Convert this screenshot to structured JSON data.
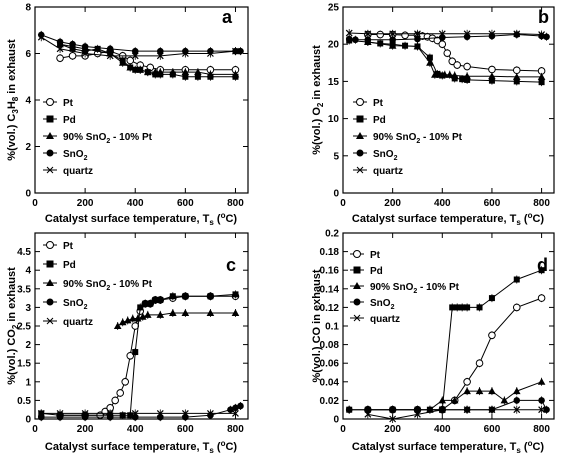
{
  "chart_data": [
    {
      "type": "line",
      "panel": "a",
      "xlabel": "Catalyst surface temperature, T_s (°C)",
      "ylabel": "%(vol.) C3H8 in exhaust",
      "xlim": [
        0,
        850
      ],
      "ylim": [
        0,
        8
      ],
      "xticks": [
        0,
        200,
        400,
        600,
        800
      ],
      "yticks": [
        0,
        2,
        4,
        6,
        8
      ],
      "legend": "bottom-left",
      "series": [
        {
          "name": "Pt",
          "marker": "circle-open",
          "x": [
            100,
            150,
            200,
            250,
            300,
            350,
            380,
            420,
            460,
            500,
            600,
            700,
            800
          ],
          "y": [
            5.8,
            5.9,
            5.9,
            6.0,
            6.1,
            5.9,
            5.7,
            5.5,
            5.4,
            5.3,
            5.3,
            5.3,
            5.3
          ]
        },
        {
          "name": "Pd",
          "marker": "square-filled",
          "x": [
            100,
            150,
            200,
            250,
            300,
            350,
            380,
            400,
            420,
            450,
            480,
            500,
            550,
            600,
            650,
            700,
            800
          ],
          "y": [
            6.4,
            6.2,
            6.1,
            6.2,
            6.0,
            5.7,
            5.4,
            5.3,
            5.3,
            5.2,
            5.1,
            5.1,
            5.1,
            5.0,
            5.0,
            5.0,
            5.0
          ]
        },
        {
          "name": "90% SnO2 - 10% Pt",
          "marker": "triangle-filled",
          "x": [
            100,
            200,
            300,
            350,
            380,
            420,
            450,
            480,
            500,
            550,
            600,
            650,
            700,
            800
          ],
          "y": [
            6.4,
            6.2,
            6.0,
            5.6,
            5.4,
            5.3,
            5.2,
            5.2,
            5.2,
            5.2,
            5.2,
            5.2,
            5.1,
            5.1
          ]
        },
        {
          "name": "SnO2",
          "marker": "circle-filled",
          "x": [
            25,
            100,
            150,
            200,
            300,
            400,
            500,
            600,
            700,
            800,
            820
          ],
          "y": [
            6.8,
            6.5,
            6.4,
            6.3,
            6.2,
            6.1,
            6.1,
            6.1,
            6.1,
            6.1,
            6.1
          ]
        },
        {
          "name": "quartz",
          "marker": "cross",
          "x": [
            25,
            100,
            200,
            300,
            400,
            500,
            600,
            700,
            800
          ],
          "y": [
            6.7,
            6.2,
            6.0,
            5.9,
            5.9,
            5.9,
            6.0,
            6.0,
            6.1
          ]
        }
      ]
    },
    {
      "type": "line",
      "panel": "b",
      "xlabel": "Catalyst surface temperature, T_s (°C)",
      "ylabel": "%(vol.) O2 in exhaust",
      "xlim": [
        0,
        850
      ],
      "ylim": [
        0,
        25
      ],
      "xticks": [
        0,
        200,
        400,
        600,
        800
      ],
      "yticks": [
        0,
        5,
        10,
        15,
        20,
        25
      ],
      "legend": "bottom-left",
      "series": [
        {
          "name": "Pt",
          "marker": "circle-open",
          "x": [
            100,
            150,
            200,
            250,
            300,
            320,
            340,
            360,
            380,
            400,
            420,
            440,
            460,
            500,
            600,
            700,
            800
          ],
          "y": [
            21.3,
            21.3,
            21.3,
            21.2,
            21.2,
            21.1,
            21.0,
            20.8,
            20.5,
            20.0,
            18.8,
            17.7,
            17.2,
            17.0,
            16.6,
            16.5,
            16.4
          ]
        },
        {
          "name": "Pd",
          "marker": "square-filled",
          "x": [
            25,
            100,
            150,
            200,
            250,
            300,
            350,
            380,
            400,
            450,
            480,
            500,
            600,
            700,
            800
          ],
          "y": [
            20.5,
            20.3,
            20.1,
            20.0,
            19.8,
            19.7,
            18.2,
            16.0,
            15.8,
            15.4,
            15.3,
            15.2,
            15.1,
            15.0,
            14.9
          ]
        },
        {
          "name": "90% SnO2 - 10% Pt",
          "marker": "triangle-filled",
          "x": [
            100,
            200,
            300,
            350,
            370,
            390,
            410,
            430,
            450,
            500,
            600,
            700,
            800
          ],
          "y": [
            20.3,
            19.8,
            19.7,
            17.5,
            15.9,
            15.9,
            15.9,
            15.9,
            15.8,
            15.7,
            15.7,
            15.6,
            15.6
          ]
        },
        {
          "name": "SnO2",
          "marker": "circle-filled",
          "x": [
            25,
            50,
            100,
            200,
            300,
            400,
            500,
            600,
            700,
            800,
            820
          ],
          "y": [
            20.7,
            20.6,
            20.6,
            20.6,
            20.7,
            20.9,
            21.0,
            21.1,
            21.3,
            21.1,
            21.0
          ]
        },
        {
          "name": "quartz",
          "marker": "cross",
          "x": [
            25,
            100,
            200,
            300,
            400,
            500,
            600,
            700,
            800
          ],
          "y": [
            21.5,
            21.4,
            21.4,
            21.4,
            21.4,
            21.4,
            21.4,
            21.4,
            21.3
          ]
        }
      ]
    },
    {
      "type": "line",
      "panel": "c",
      "xlabel": "Catalyst surface temperature, T_s (°C)",
      "ylabel": "%(vol.) CO2 in exhaust",
      "xlim": [
        0,
        850
      ],
      "ylim": [
        0,
        5
      ],
      "xticks": [
        0,
        200,
        400,
        600,
        800
      ],
      "yticks": [
        0,
        0.5,
        1,
        1.5,
        2,
        2.5,
        3,
        3.5,
        4,
        4.5
      ],
      "legend": "top-left",
      "series": [
        {
          "name": "Pt",
          "marker": "circle-open",
          "x": [
            100,
            200,
            260,
            280,
            300,
            320,
            340,
            360,
            380,
            400,
            420,
            440,
            460,
            480,
            500,
            550,
            600,
            700,
            800
          ],
          "y": [
            0.1,
            0.1,
            0.1,
            0.2,
            0.3,
            0.5,
            0.7,
            1.0,
            1.7,
            2.5,
            2.9,
            3.1,
            3.1,
            3.2,
            3.2,
            3.25,
            3.3,
            3.3,
            3.3
          ]
        },
        {
          "name": "Pd",
          "marker": "square-filled",
          "x": [
            25,
            100,
            200,
            300,
            350,
            380,
            400,
            420,
            440,
            460,
            480,
            500,
            550,
            600,
            700,
            800
          ],
          "y": [
            0.15,
            0.1,
            0.1,
            0.1,
            0.1,
            0.1,
            1.8,
            3.0,
            3.1,
            3.1,
            3.2,
            3.2,
            3.3,
            3.3,
            3.3,
            3.35
          ]
        },
        {
          "name": "90% SnO2 - 10% Pt",
          "marker": "triangle-filled",
          "x": [
            330,
            350,
            370,
            390,
            410,
            430,
            450,
            500,
            550,
            600,
            700,
            800
          ],
          "y": [
            2.5,
            2.6,
            2.65,
            2.7,
            2.7,
            2.75,
            2.8,
            2.8,
            2.85,
            2.85,
            2.85,
            2.85
          ]
        },
        {
          "name": "SnO2",
          "marker": "circle-filled",
          "x": [
            25,
            100,
            200,
            300,
            400,
            500,
            600,
            700,
            780,
            800,
            820
          ],
          "y": [
            0.05,
            0.05,
            0.05,
            0.05,
            0.05,
            0.05,
            0.05,
            0.1,
            0.25,
            0.3,
            0.35
          ]
        },
        {
          "name": "quartz",
          "marker": "cross",
          "x": [
            25,
            100,
            200,
            300,
            400,
            500,
            600,
            700,
            800
          ],
          "y": [
            0.15,
            0.15,
            0.15,
            0.15,
            0.15,
            0.15,
            0.15,
            0.15,
            0.15
          ]
        }
      ]
    },
    {
      "type": "line",
      "panel": "d",
      "xlabel": "Catalyst surface temperature, T_s (°C)",
      "ylabel": "%(vol.) CO in exhaust",
      "xlim": [
        0,
        850
      ],
      "ylim": [
        0,
        0.2
      ],
      "xticks": [
        0,
        200,
        400,
        600,
        800
      ],
      "yticks": [
        0,
        0.02,
        0.04,
        0.06,
        0.08,
        0.1,
        0.12,
        0.14,
        0.16,
        0.18,
        0.2
      ],
      "legend": "top-left",
      "series": [
        {
          "name": "Pt",
          "marker": "circle-open",
          "x": [
            100,
            200,
            300,
            400,
            450,
            500,
            550,
            600,
            700,
            800
          ],
          "y": [
            0.01,
            0.01,
            0.01,
            0.01,
            0.02,
            0.04,
            0.06,
            0.09,
            0.12,
            0.13
          ]
        },
        {
          "name": "Pd",
          "marker": "square-filled",
          "x": [
            25,
            100,
            200,
            300,
            350,
            400,
            440,
            460,
            480,
            500,
            550,
            600,
            700,
            800
          ],
          "y": [
            0.01,
            0.01,
            0.01,
            0.01,
            0.01,
            0.01,
            0.12,
            0.12,
            0.12,
            0.12,
            0.12,
            0.13,
            0.15,
            0.16
          ]
        },
        {
          "name": "90% SnO2 - 10% Pt",
          "marker": "triangle-filled",
          "x": [
            350,
            400,
            450,
            500,
            550,
            600,
            650,
            700,
            800
          ],
          "y": [
            0.01,
            0.02,
            0.02,
            0.03,
            0.03,
            0.03,
            0.02,
            0.03,
            0.04
          ]
        },
        {
          "name": "SnO2",
          "marker": "circle-filled",
          "x": [
            25,
            100,
            200,
            300,
            400,
            500,
            600,
            700,
            800,
            820
          ],
          "y": [
            0.01,
            0.01,
            0.01,
            0.01,
            0.01,
            0.01,
            0.01,
            0.02,
            0.02,
            0.01
          ]
        },
        {
          "name": "quartz",
          "marker": "cross",
          "x": [
            100,
            200,
            300,
            400,
            500,
            600,
            700,
            800
          ],
          "y": [
            0.005,
            0.0,
            0.005,
            0.01,
            0.01,
            0.01,
            0.01,
            0.01
          ]
        }
      ]
    }
  ],
  "panel_letters": [
    "a",
    "b",
    "c",
    "d"
  ],
  "legend_labels": [
    "Pt",
    "Pd",
    "90% SnO",
    "2",
    " - 10% Pt",
    "SnO",
    "2",
    "quartz"
  ],
  "xlabel_parts": {
    "main": "Catalyst surface temperature, T",
    "sub": "s",
    "open": " (",
    "sup": "o",
    "close": "C)"
  },
  "ylabel_parts": {
    "a": {
      "main": "%(vol.) C",
      "sub1": "3",
      "mid": "H",
      "sub2": "8",
      "rest": " in exhaust"
    },
    "b": {
      "main": "%(vol.) O",
      "sub": "2",
      "rest": " in exhaust"
    },
    "c": {
      "main": "%(vol.) CO",
      "sub": "2",
      "rest": " in exhaust"
    },
    "d": {
      "main": "%(vol.) CO in exhaust"
    }
  }
}
